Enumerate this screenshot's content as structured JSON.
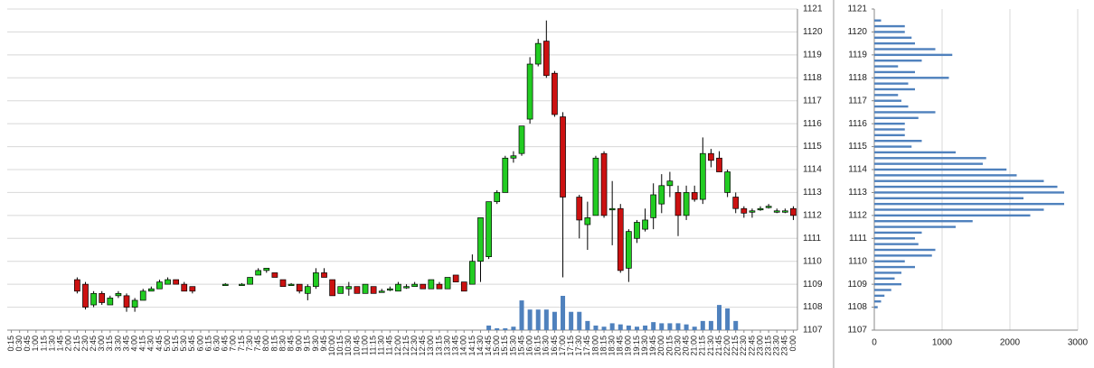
{
  "chart_data": [
    {
      "type": "candlestick",
      "categories": [
        "0:15",
        "0:30",
        "0:45",
        "1:00",
        "1:15",
        "1:30",
        "1:45",
        "2:00",
        "2:15",
        "2:30",
        "2:45",
        "3:00",
        "3:15",
        "3:30",
        "3:45",
        "4:00",
        "4:15",
        "4:30",
        "4:45",
        "5:00",
        "5:15",
        "5:30",
        "5:45",
        "6:00",
        "6:15",
        "6:30",
        "6:45",
        "7:00",
        "7:15",
        "7:30",
        "7:45",
        "8:00",
        "8:15",
        "8:30",
        "8:45",
        "9:00",
        "9:15",
        "9:30",
        "9:45",
        "10:00",
        "10:15",
        "10:30",
        "10:45",
        "11:00",
        "11:15",
        "11:30",
        "11:45",
        "12:00",
        "12:15",
        "12:30",
        "12:45",
        "13:00",
        "13:15",
        "13:30",
        "13:45",
        "14:00",
        "14:15",
        "14:30",
        "14:45",
        "15:00",
        "15:15",
        "15:30",
        "15:45",
        "16:00",
        "16:15",
        "16:30",
        "16:45",
        "17:00",
        "17:15",
        "17:30",
        "17:45",
        "18:00",
        "18:15",
        "18:30",
        "18:45",
        "19:00",
        "19:15",
        "19:30",
        "19:45",
        "20:00",
        "20:15",
        "20:30",
        "20:45",
        "21:00",
        "21:15",
        "21:30",
        "21:45",
        "22:00",
        "22:15",
        "22:30",
        "22:45",
        "23:00",
        "23:15",
        "23:30",
        "23:45",
        "0:00"
      ],
      "open": [
        null,
        null,
        null,
        null,
        null,
        null,
        null,
        null,
        1109.2,
        1109.0,
        1108.1,
        1108.6,
        1108.1,
        1108.5,
        1108.5,
        1108.0,
        1108.3,
        1108.7,
        1108.8,
        1109.0,
        1109.2,
        1109.0,
        1108.9,
        null,
        null,
        null,
        1109.0,
        null,
        1109.0,
        1109.0,
        1109.4,
        1109.6,
        1109.5,
        1109.2,
        1109.0,
        1109.0,
        1108.6,
        1108.9,
        1109.5,
        1109.2,
        1108.6,
        1108.8,
        1108.9,
        1108.6,
        1108.9,
        1108.7,
        1108.8,
        1108.7,
        1108.9,
        1108.9,
        1109.0,
        1108.8,
        1109.0,
        1108.8,
        1109.4,
        1109.1,
        1109.0,
        1110.0,
        1110.2,
        1112.6,
        1113.0,
        1114.5,
        1114.7,
        1116.2,
        1118.6,
        1119.6,
        1118.2,
        1116.3,
        null,
        1112.8,
        1111.6,
        1112.0,
        1114.7,
        1112.3,
        1112.3,
        1109.7,
        1111.0,
        1111.4,
        1111.9,
        1112.5,
        1113.3,
        1113.0,
        1112.0,
        1113.0,
        1112.7,
        1114.7,
        1114.5,
        1113.0,
        1112.8,
        1112.3,
        1112.2,
        1112.3,
        1112.4,
        1112.2,
        1112.2,
        1112.3
      ],
      "high": [
        null,
        null,
        null,
        null,
        null,
        null,
        null,
        null,
        1109.3,
        1109.1,
        1108.7,
        1108.7,
        1108.5,
        1108.7,
        1108.6,
        1108.4,
        1108.8,
        1108.9,
        1109.2,
        1109.3,
        1109.2,
        1109.1,
        1108.9,
        null,
        null,
        null,
        1109.05,
        null,
        1109.05,
        1109.3,
        1109.7,
        1109.7,
        1109.5,
        1109.2,
        1109.05,
        1109.0,
        1109.0,
        1109.7,
        1109.7,
        1109.2,
        1108.9,
        1109.1,
        1108.9,
        1109.0,
        1108.9,
        1108.8,
        1108.9,
        1109.1,
        1109.0,
        1109.1,
        1109.0,
        1109.2,
        1109.1,
        1109.3,
        1109.4,
        1109.1,
        1110.3,
        1111.9,
        1112.6,
        1113.1,
        1114.6,
        1114.8,
        1115.9,
        1118.9,
        1119.7,
        1120.5,
        1118.3,
        1116.5,
        null,
        1112.9,
        1112.6,
        1114.6,
        1114.8,
        1113.5,
        1112.5,
        1111.4,
        1111.8,
        1112.3,
        1113.4,
        1113.8,
        1113.9,
        1113.3,
        1113.3,
        1113.3,
        1115.4,
        1114.9,
        1114.8,
        1114.0,
        1113.0,
        1112.4,
        1112.3,
        1112.4,
        1112.5,
        1112.3,
        1112.3,
        1112.4
      ],
      "low": [
        null,
        null,
        null,
        null,
        null,
        null,
        null,
        null,
        1108.6,
        1107.9,
        1108.0,
        1108.1,
        1108.1,
        1108.4,
        1107.8,
        1107.8,
        1108.3,
        1108.7,
        1108.8,
        1109.0,
        1109.0,
        1108.7,
        1108.6,
        null,
        null,
        null,
        1108.95,
        null,
        1108.95,
        1109.0,
        1109.4,
        1109.5,
        1109.3,
        1108.9,
        1108.95,
        1108.6,
        1108.3,
        1108.8,
        1109.3,
        1108.5,
        1108.6,
        1108.5,
        1108.6,
        1108.6,
        1108.6,
        1108.7,
        1108.7,
        1108.7,
        1108.8,
        1108.9,
        1108.8,
        1108.8,
        1108.8,
        1108.8,
        1109.1,
        1108.7,
        1109.0,
        1109.1,
        1110.1,
        1112.5,
        1113.0,
        1114.3,
        1114.6,
        1116.0,
        1118.5,
        1118.0,
        1116.3,
        1109.3,
        null,
        1111.0,
        1110.5,
        1112.0,
        1111.9,
        1110.7,
        1109.5,
        1109.1,
        1110.8,
        1111.3,
        1111.4,
        1112.1,
        1112.8,
        1111.1,
        1111.8,
        1112.6,
        1112.5,
        1114.1,
        1113.9,
        1112.8,
        1112.1,
        1111.9,
        1111.9,
        1112.2,
        1112.3,
        1112.1,
        1112.1,
        1111.8
      ],
      "close": [
        null,
        null,
        null,
        null,
        null,
        null,
        null,
        null,
        1108.7,
        1108.0,
        1108.6,
        1108.2,
        1108.4,
        1108.6,
        1108.0,
        1108.3,
        1108.7,
        1108.8,
        1109.1,
        1109.2,
        1109.0,
        1108.7,
        1108.7,
        null,
        null,
        null,
        1109.0,
        null,
        1109.0,
        1109.3,
        1109.6,
        1109.7,
        1109.3,
        1108.9,
        1109.0,
        1108.7,
        1108.9,
        1109.5,
        1109.3,
        1108.5,
        1108.9,
        1108.9,
        1108.6,
        1109.0,
        1108.6,
        1108.7,
        1108.8,
        1109.0,
        1108.9,
        1109.0,
        1108.8,
        1109.2,
        1108.8,
        1109.3,
        1109.1,
        1108.7,
        1110.0,
        1111.9,
        1112.6,
        1113.0,
        1114.5,
        1114.6,
        1115.9,
        1118.6,
        1119.5,
        1118.1,
        1116.4,
        1112.8,
        null,
        1111.8,
        1111.9,
        1114.5,
        1112.0,
        1112.3,
        1109.6,
        1111.3,
        1111.7,
        1111.8,
        1112.9,
        1113.3,
        1113.5,
        1112.0,
        1113.0,
        1112.7,
        1114.7,
        1114.4,
        1113.9,
        1113.9,
        1112.3,
        1112.1,
        1112.2,
        1112.3,
        1112.4,
        1112.2,
        1112.2,
        1112.0
      ],
      "volume": [
        null,
        null,
        null,
        null,
        null,
        null,
        null,
        null,
        null,
        null,
        null,
        null,
        null,
        null,
        null,
        null,
        null,
        null,
        null,
        null,
        null,
        null,
        null,
        null,
        null,
        null,
        null,
        null,
        null,
        null,
        null,
        null,
        null,
        null,
        null,
        null,
        null,
        null,
        null,
        null,
        null,
        null,
        null,
        null,
        null,
        null,
        null,
        null,
        null,
        null,
        null,
        null,
        null,
        null,
        null,
        null,
        null,
        null,
        200,
        80,
        80,
        150,
        1300,
        900,
        900,
        900,
        800,
        1500,
        800,
        800,
        400,
        200,
        150,
        300,
        250,
        200,
        150,
        200,
        350,
        300,
        300,
        300,
        250,
        150,
        400,
        400,
        1100,
        950,
        400,
        null,
        null,
        null,
        null,
        null,
        null,
        null
      ],
      "up_color": "#22cc22",
      "down_color": "#cc1111",
      "volume_color": "#4f81bd",
      "ylim": [
        1107,
        1121
      ],
      "yticks": [
        1107,
        1108,
        1109,
        1110,
        1111,
        1112,
        1113,
        1114,
        1115,
        1116,
        1117,
        1118,
        1119,
        1120,
        1121
      ],
      "grid": true
    },
    {
      "type": "profile",
      "y": [
        1108,
        1108.25,
        1108.5,
        1108.75,
        1109,
        1109.25,
        1109.5,
        1109.75,
        1110,
        1110.25,
        1110.5,
        1110.75,
        1111,
        1111.25,
        1111.5,
        1111.75,
        1112,
        1112.25,
        1112.5,
        1112.75,
        1113,
        1113.25,
        1113.5,
        1113.75,
        1114,
        1114.25,
        1114.5,
        1114.75,
        1115,
        1115.25,
        1115.5,
        1115.75,
        1116,
        1116.25,
        1116.5,
        1116.75,
        1117,
        1117.25,
        1117.5,
        1117.75,
        1118,
        1118.25,
        1118.5,
        1118.75,
        1119,
        1119.25,
        1119.5,
        1119.75,
        1120,
        1120.25,
        1120.5
      ],
      "values": [
        50,
        100,
        150,
        250,
        400,
        300,
        400,
        600,
        450,
        850,
        900,
        650,
        600,
        700,
        1200,
        1450,
        2300,
        2500,
        2800,
        2200,
        2800,
        2700,
        2500,
        2100,
        1950,
        1600,
        1650,
        1200,
        550,
        700,
        450,
        450,
        450,
        650,
        900,
        500,
        400,
        350,
        600,
        500,
        1100,
        600,
        350,
        700,
        1150,
        900,
        600,
        550,
        450,
        450,
        100
      ],
      "color": "#4f81bd",
      "xlim": [
        0,
        3000
      ],
      "xticks": [
        0,
        1000,
        2000,
        3000
      ],
      "ylim": [
        1107,
        1121
      ],
      "yticks": [
        1107,
        1108,
        1109,
        1110,
        1111,
        1112,
        1113,
        1114,
        1115,
        1116,
        1117,
        1118,
        1119,
        1120,
        1121
      ],
      "grid": true
    }
  ]
}
